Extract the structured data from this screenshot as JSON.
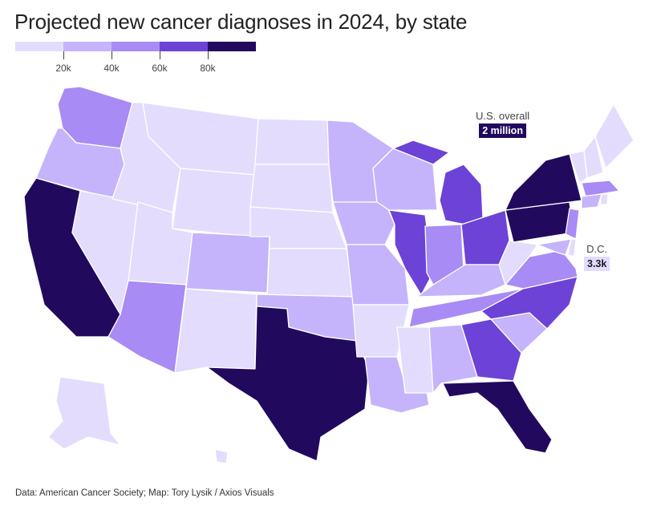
{
  "title": "Projected new cancer diagnoses in 2024, by state",
  "legend": {
    "colors": [
      "#e3dcfd",
      "#c5b4fb",
      "#a88bf4",
      "#6d42d6",
      "#210a5e"
    ],
    "ticks": [
      "20k",
      "40k",
      "60k",
      "80k"
    ]
  },
  "callouts": {
    "us_label": "U.S. overall",
    "us_value": "2 million",
    "dc_label": "D.C.",
    "dc_value": "3.3k"
  },
  "states": [
    {
      "name": "washington",
      "bin": 3
    },
    {
      "name": "oregon",
      "bin": 2
    },
    {
      "name": "california",
      "bin": 5
    },
    {
      "name": "nevada",
      "bin": 1
    },
    {
      "name": "idaho",
      "bin": 1
    },
    {
      "name": "montana",
      "bin": 1
    },
    {
      "name": "wyoming",
      "bin": 1
    },
    {
      "name": "utah",
      "bin": 1
    },
    {
      "name": "arizona",
      "bin": 3
    },
    {
      "name": "colorado",
      "bin": 2
    },
    {
      "name": "new-mexico",
      "bin": 1
    },
    {
      "name": "north-dakota",
      "bin": 1
    },
    {
      "name": "south-dakota",
      "bin": 1
    },
    {
      "name": "nebraska",
      "bin": 1
    },
    {
      "name": "kansas",
      "bin": 1
    },
    {
      "name": "oklahoma",
      "bin": 2
    },
    {
      "name": "texas",
      "bin": 5
    },
    {
      "name": "minnesota",
      "bin": 2
    },
    {
      "name": "iowa",
      "bin": 2
    },
    {
      "name": "missouri",
      "bin": 2
    },
    {
      "name": "arkansas",
      "bin": 1
    },
    {
      "name": "louisiana",
      "bin": 2
    },
    {
      "name": "wisconsin",
      "bin": 2
    },
    {
      "name": "illinois",
      "bin": 4
    },
    {
      "name": "michigan",
      "bin": 4
    },
    {
      "name": "michigan-upper",
      "bin": 4
    },
    {
      "name": "indiana",
      "bin": 3
    },
    {
      "name": "ohio",
      "bin": 4
    },
    {
      "name": "kentucky",
      "bin": 2
    },
    {
      "name": "tennessee",
      "bin": 3
    },
    {
      "name": "mississippi",
      "bin": 1
    },
    {
      "name": "alabama",
      "bin": 2
    },
    {
      "name": "georgia",
      "bin": 4
    },
    {
      "name": "florida",
      "bin": 5
    },
    {
      "name": "south-carolina",
      "bin": 2
    },
    {
      "name": "north-carolina",
      "bin": 4
    },
    {
      "name": "virginia",
      "bin": 3
    },
    {
      "name": "west-virginia",
      "bin": 1
    },
    {
      "name": "pennsylvania",
      "bin": 5
    },
    {
      "name": "new-york",
      "bin": 5
    },
    {
      "name": "new-jersey",
      "bin": 3
    },
    {
      "name": "maryland",
      "bin": 2
    },
    {
      "name": "delaware",
      "bin": 1
    },
    {
      "name": "vermont",
      "bin": 1
    },
    {
      "name": "new-hampshire",
      "bin": 1
    },
    {
      "name": "maine",
      "bin": 1
    },
    {
      "name": "massachusetts",
      "bin": 3
    },
    {
      "name": "connecticut",
      "bin": 2
    },
    {
      "name": "rhode-island",
      "bin": 1
    },
    {
      "name": "alaska",
      "bin": 1
    },
    {
      "name": "hawaii",
      "bin": 1
    }
  ],
  "footer": "Data: American Cancer Society; Map: Tory Lysik / Axios Visuals"
}
